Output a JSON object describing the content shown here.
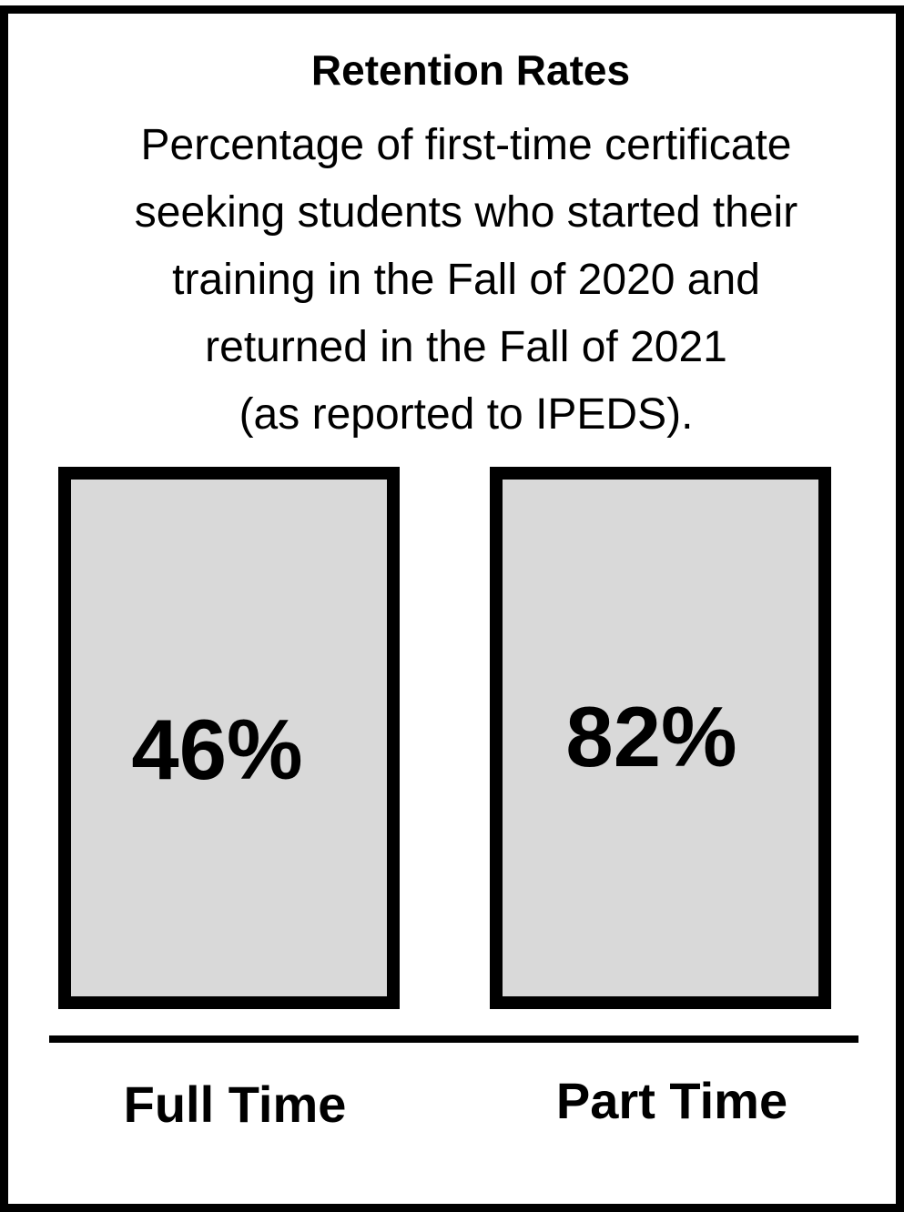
{
  "title": "Retention Rates",
  "subtitle_lines": [
    "Percentage of first-time certificate",
    "seeking students who started their",
    "training in the Fall of 2020 and",
    "returned in the Fall of 2021",
    "(as reported to IPEDS)."
  ],
  "metrics": [
    {
      "label": "Full Time",
      "value": "46%"
    },
    {
      "label": "Part Time",
      "value": "82%"
    }
  ],
  "colors": {
    "box_fill": "#d9d9d9",
    "border": "#000000",
    "background": "#ffffff"
  }
}
